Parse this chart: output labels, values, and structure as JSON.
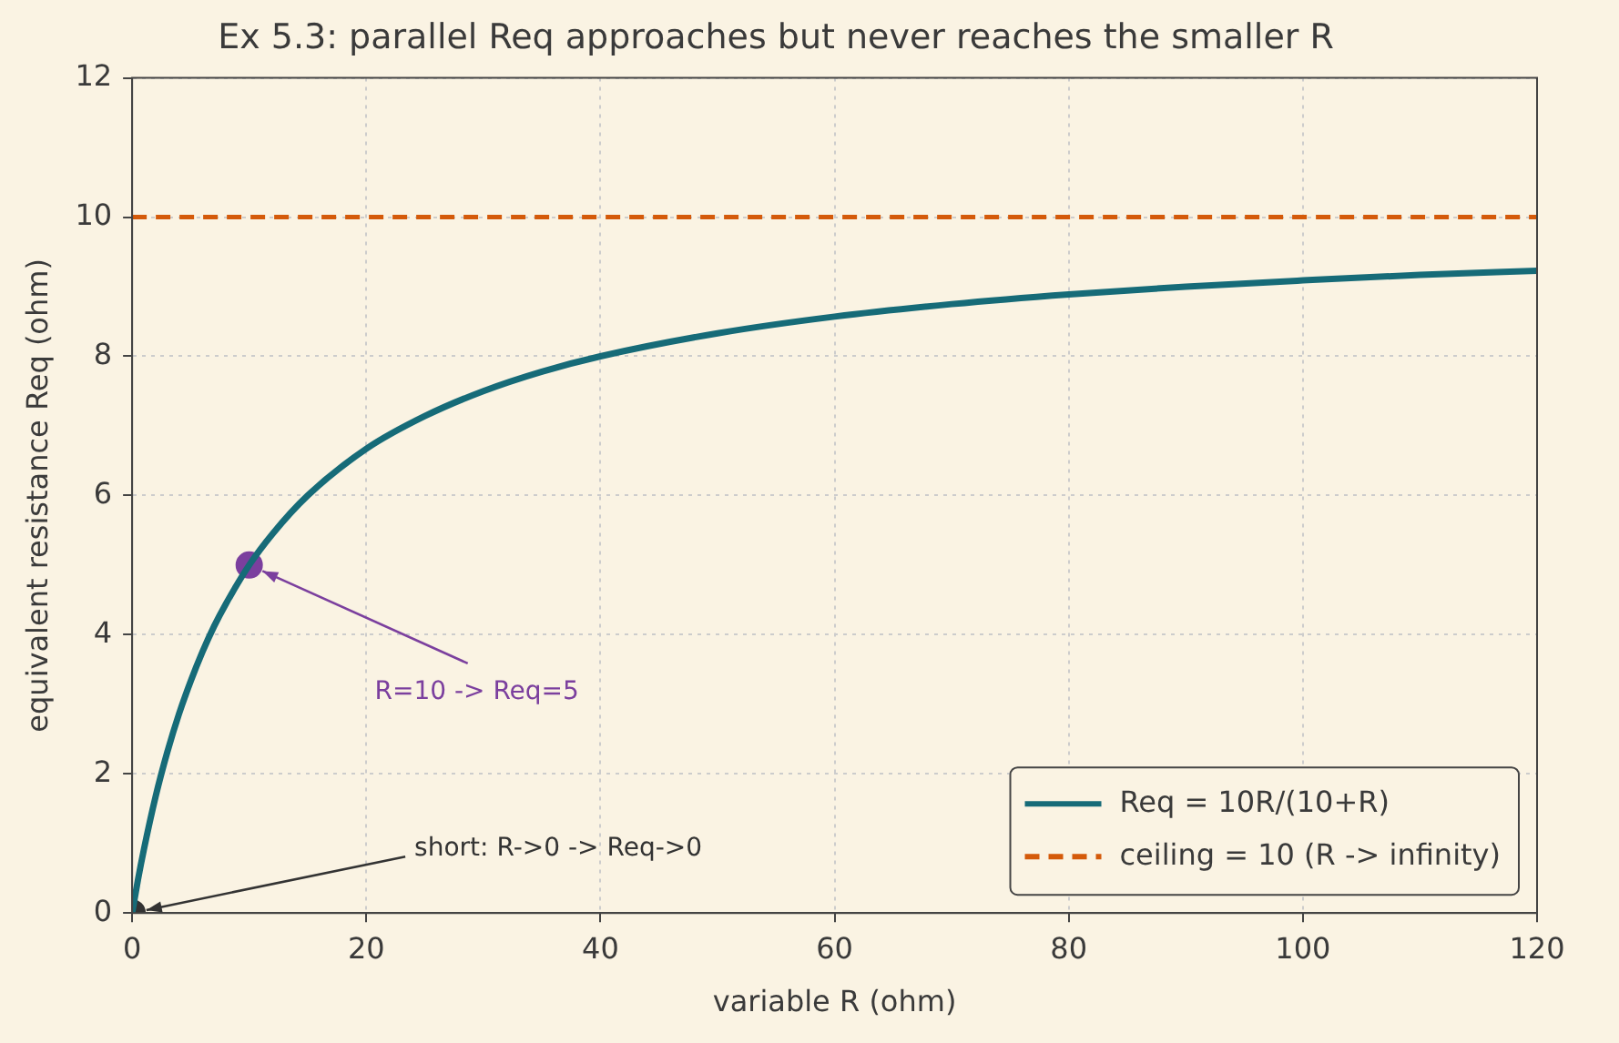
{
  "chart_data": {
    "type": "line",
    "title": "Ex 5.3: parallel Req approaches but never reaches the smaller R",
    "xlabel": "variable R (ohm)",
    "ylabel": "equivalent resistance Req (ohm)",
    "series": [
      {
        "type": "line",
        "name": "Req = 10R/(10+R)",
        "color": "#166b78",
        "marker": "none",
        "x": [
          0,
          0.5,
          1,
          2,
          3,
          4,
          5,
          6,
          7,
          8,
          10,
          12,
          15,
          20,
          25,
          30,
          35,
          40,
          50,
          60,
          70,
          80,
          90,
          100,
          110,
          120
        ],
        "values": [
          0,
          0.48,
          0.91,
          1.67,
          2.31,
          2.86,
          3.33,
          3.75,
          4.12,
          4.44,
          5,
          5.45,
          6,
          6.67,
          7.14,
          7.5,
          7.78,
          8,
          8.33,
          8.57,
          8.75,
          8.89,
          9,
          9.09,
          9.17,
          9.23
        ]
      },
      {
        "type": "scatter",
        "color": "#7b3f9e",
        "marker": "circle",
        "x": [
          10
        ],
        "values": [
          5
        ]
      },
      {
        "type": "scatter",
        "color": "#333333",
        "marker": "circle",
        "x": [
          0
        ],
        "values": [
          0
        ]
      }
    ],
    "ref_lines": [
      {
        "axis": "y",
        "value": 10,
        "label": "ceiling = 10 (R -> infinity)",
        "color": "#d45a0a",
        "line_style": "dashed"
      }
    ],
    "annotations": [
      {
        "text": "R=10 -> Req=5",
        "x": 10,
        "y": 5
      },
      {
        "text": "short: R->0 -> Req->0",
        "x": 0,
        "y": 0
      }
    ],
    "xlim": [
      0,
      120
    ],
    "xticks": [
      0,
      20,
      40,
      60,
      80,
      100,
      120
    ],
    "ylim": [
      0,
      12
    ],
    "yticks": [
      0,
      2,
      4,
      6,
      8,
      10,
      12
    ],
    "grid": true,
    "legend": "bottom right"
  }
}
